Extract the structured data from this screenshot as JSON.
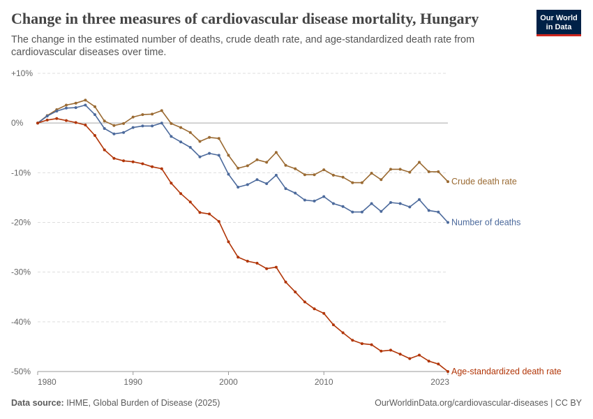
{
  "header": {
    "title": "Change in three measures of cardiovascular disease mortality, Hungary",
    "subtitle": "The change in the estimated number of deaths, crude death rate, and age-standardized death rate from cardiovascular diseases over time.",
    "logo_line1": "Our World",
    "logo_line2": "in Data"
  },
  "footer": {
    "source_label": "Data source:",
    "source_text": "IHME, Global Burden of Disease (2025)",
    "url": "OurWorldinData.org/cardiovascular-diseases | CC BY"
  },
  "chart_data": {
    "type": "line",
    "x": [
      1980,
      1981,
      1982,
      1983,
      1984,
      1985,
      1986,
      1987,
      1988,
      1989,
      1990,
      1991,
      1992,
      1993,
      1994,
      1995,
      1996,
      1997,
      1998,
      1999,
      2000,
      2001,
      2002,
      2003,
      2004,
      2005,
      2006,
      2007,
      2008,
      2009,
      2010,
      2011,
      2012,
      2013,
      2014,
      2015,
      2016,
      2017,
      2018,
      2019,
      2020,
      2021,
      2022,
      2023
    ],
    "x_ticks": [
      "1980",
      "1990",
      "2000",
      "2010",
      "2023"
    ],
    "y_ticks": [
      "+10%",
      "0%",
      "-10%",
      "-20%",
      "-30%",
      "-40%",
      "-50%"
    ],
    "xlim": [
      1980,
      2023
    ],
    "ylim": [
      -50,
      10
    ],
    "grid": true,
    "series": [
      {
        "name": "Crude death rate",
        "color": "#9a6a32",
        "values": [
          0,
          1.5,
          2.7,
          3.6,
          4.0,
          4.6,
          3.3,
          0.4,
          -0.5,
          -0.1,
          1.2,
          1.7,
          1.8,
          2.5,
          -0.1,
          -0.9,
          -1.9,
          -3.7,
          -2.9,
          -3.1,
          -6.5,
          -9.1,
          -8.6,
          -7.4,
          -7.9,
          -5.9,
          -8.5,
          -9.2,
          -10.4,
          -10.4,
          -9.4,
          -10.5,
          -10.9,
          -12.0,
          -12.0,
          -10.1,
          -11.4,
          -9.3,
          -9.3,
          -9.9,
          -7.9,
          -9.8,
          -9.8,
          -11.8
        ]
      },
      {
        "name": "Number of deaths",
        "color": "#4c6a9c",
        "values": [
          0,
          1.4,
          2.4,
          3.0,
          3.1,
          3.6,
          1.7,
          -1.1,
          -2.2,
          -1.9,
          -0.9,
          -0.6,
          -0.6,
          0.0,
          -2.7,
          -3.8,
          -4.9,
          -6.8,
          -6.1,
          -6.5,
          -10.3,
          -12.9,
          -12.4,
          -11.4,
          -12.2,
          -10.5,
          -13.2,
          -14.1,
          -15.5,
          -15.7,
          -14.8,
          -16.2,
          -16.8,
          -17.9,
          -17.9,
          -16.2,
          -17.8,
          -16.0,
          -16.2,
          -16.9,
          -15.4,
          -17.6,
          -17.9,
          -20.0
        ]
      },
      {
        "name": "Age-standardized death rate",
        "color": "#b13507",
        "values": [
          0,
          0.6,
          0.9,
          0.5,
          0.1,
          -0.4,
          -2.5,
          -5.4,
          -7.1,
          -7.6,
          -7.8,
          -8.2,
          -8.8,
          -9.2,
          -12.1,
          -14.2,
          -15.9,
          -18.0,
          -18.3,
          -19.8,
          -23.9,
          -27.0,
          -27.8,
          -28.2,
          -29.3,
          -29.0,
          -32.0,
          -34.0,
          -36.0,
          -37.4,
          -38.3,
          -40.6,
          -42.2,
          -43.7,
          -44.4,
          -44.6,
          -45.9,
          -45.7,
          -46.5,
          -47.4,
          -46.7,
          -47.9,
          -48.5,
          -50.0
        ]
      }
    ]
  }
}
